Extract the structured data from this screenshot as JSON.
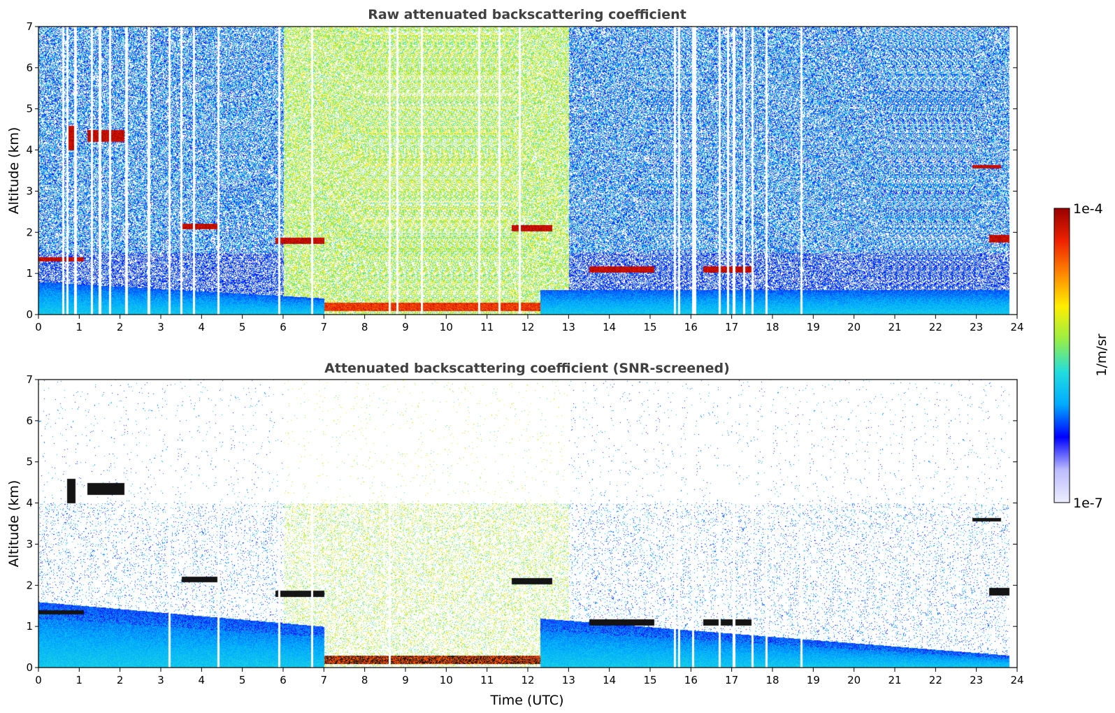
{
  "chart_data": [
    {
      "type": "heatmap",
      "title": "Raw attenuated backscattering coefficient",
      "xlabel": "",
      "ylabel": "Altitude (km)",
      "xlim": [
        0,
        24
      ],
      "ylim": [
        0,
        7
      ],
      "x_ticks": [
        "0",
        "1",
        "2",
        "3",
        "4",
        "5",
        "6",
        "7",
        "8",
        "9",
        "10",
        "11",
        "12",
        "13",
        "14",
        "15",
        "16",
        "17",
        "18",
        "19",
        "20",
        "21",
        "22",
        "23",
        "24"
      ],
      "y_ticks": [
        "0",
        "1",
        "2",
        "3",
        "4",
        "5",
        "6",
        "7"
      ],
      "data_end_time": 23.8,
      "noise_top": 7,
      "missing_profiles": [
        0.6,
        0.7,
        0.9,
        1.3,
        1.5,
        1.75,
        2.15,
        2.7,
        3.2,
        3.5,
        3.8,
        4.4,
        5.9,
        6.7,
        8.6,
        8.8,
        9.4,
        10.8,
        11.3,
        11.8,
        15.6,
        15.7,
        16.05,
        16.1,
        16.7,
        16.9,
        17.05,
        17.3,
        17.5,
        17.85,
        18.7
      ],
      "features": [
        {
          "kind": "boundary-layer",
          "t_start": 0,
          "t_end": 7,
          "top_km_start": 0.8,
          "top_km_end": 0.4
        },
        {
          "kind": "aerosol-layer",
          "t_start": 7,
          "t_end": 12.3,
          "base_km": 0.1,
          "top_km": 0.3
        },
        {
          "kind": "boundary-layer",
          "t_start": 12.3,
          "t_end": 23.8,
          "top_km_start": 0.6,
          "top_km_end": 0.6
        },
        {
          "kind": "cloud",
          "t_start": 0,
          "t_end": 1.1,
          "alt_km": 1.35,
          "thickness_km": 0.1
        },
        {
          "kind": "cloud",
          "t_start": 0.7,
          "t_end": 0.9,
          "alt_km": 4.3,
          "thickness_km": 0.6
        },
        {
          "kind": "cloud",
          "t_start": 1.2,
          "t_end": 2.1,
          "alt_km": 4.35,
          "thickness_km": 0.3
        },
        {
          "kind": "cloud",
          "t_start": 3.5,
          "t_end": 4.4,
          "alt_km": 2.15,
          "thickness_km": 0.15
        },
        {
          "kind": "cloud",
          "t_start": 5.8,
          "t_end": 7.0,
          "alt_km": 1.8,
          "thickness_km": 0.15
        },
        {
          "kind": "cloud",
          "t_start": 11.6,
          "t_end": 12.6,
          "alt_km": 2.1,
          "thickness_km": 0.15
        },
        {
          "kind": "cloud",
          "t_start": 13.5,
          "t_end": 15.1,
          "alt_km": 1.1,
          "thickness_km": 0.15
        },
        {
          "kind": "cloud",
          "t_start": 16.3,
          "t_end": 17.5,
          "alt_km": 1.1,
          "thickness_km": 0.15
        },
        {
          "kind": "cloud",
          "t_start": 22.9,
          "t_end": 23.6,
          "alt_km": 3.6,
          "thickness_km": 0.08
        },
        {
          "kind": "cloud",
          "t_start": 23.3,
          "t_end": 23.8,
          "alt_km": 1.85,
          "thickness_km": 0.2
        }
      ]
    },
    {
      "type": "heatmap",
      "title": "Attenuated backscattering coefficient (SNR-screened)",
      "xlabel": "Time (UTC)",
      "ylabel": "Altitude (km)",
      "xlim": [
        0,
        24
      ],
      "ylim": [
        0,
        7
      ],
      "x_ticks": [
        "0",
        "1",
        "2",
        "3",
        "4",
        "5",
        "6",
        "7",
        "8",
        "9",
        "10",
        "11",
        "12",
        "13",
        "14",
        "15",
        "16",
        "17",
        "18",
        "19",
        "20",
        "21",
        "22",
        "23",
        "24"
      ],
      "y_ticks": [
        "0",
        "1",
        "2",
        "3",
        "4",
        "5",
        "6",
        "7"
      ],
      "data_end_time": 23.8,
      "noise_top": 4,
      "missing_profiles": [
        3.2,
        4.4,
        5.9,
        6.7,
        8.6,
        15.6,
        15.7,
        16.05,
        16.7,
        17.05,
        17.5,
        17.85,
        18.7
      ],
      "features": [
        {
          "kind": "boundary-layer",
          "t_start": 0,
          "t_end": 7,
          "top_km_start": 1.6,
          "top_km_end": 1.0
        },
        {
          "kind": "aerosol-layer",
          "t_start": 7,
          "t_end": 12.3,
          "base_km": 0.1,
          "top_km": 0.3
        },
        {
          "kind": "boundary-layer",
          "t_start": 12.3,
          "t_end": 23.8,
          "top_km_start": 1.2,
          "top_km_end": 0.3
        },
        {
          "kind": "cloud",
          "t_start": 0,
          "t_end": 1.1,
          "alt_km": 1.35,
          "thickness_km": 0.1
        },
        {
          "kind": "cloud",
          "t_start": 0.7,
          "t_end": 0.9,
          "alt_km": 4.3,
          "thickness_km": 0.6
        },
        {
          "kind": "cloud",
          "t_start": 1.2,
          "t_end": 2.1,
          "alt_km": 4.35,
          "thickness_km": 0.3
        },
        {
          "kind": "cloud",
          "t_start": 3.5,
          "t_end": 4.4,
          "alt_km": 2.15,
          "thickness_km": 0.15
        },
        {
          "kind": "cloud",
          "t_start": 5.8,
          "t_end": 7.0,
          "alt_km": 1.8,
          "thickness_km": 0.15
        },
        {
          "kind": "cloud",
          "t_start": 11.6,
          "t_end": 12.6,
          "alt_km": 2.1,
          "thickness_km": 0.15
        },
        {
          "kind": "cloud",
          "t_start": 13.5,
          "t_end": 15.1,
          "alt_km": 1.1,
          "thickness_km": 0.15
        },
        {
          "kind": "cloud",
          "t_start": 16.3,
          "t_end": 17.5,
          "alt_km": 1.1,
          "thickness_km": 0.15
        },
        {
          "kind": "cloud",
          "t_start": 22.9,
          "t_end": 23.6,
          "alt_km": 3.6,
          "thickness_km": 0.08
        },
        {
          "kind": "cloud",
          "t_start": 23.3,
          "t_end": 23.8,
          "alt_km": 1.85,
          "thickness_km": 0.2
        }
      ]
    }
  ],
  "colorbar": {
    "label": "1/m/sr",
    "min_label": "1e-7",
    "max_label": "1e-4",
    "colormap": "jet",
    "colors": [
      "#eeeeff",
      "#bbbbff",
      "#0000ff",
      "#00aaff",
      "#22dddd",
      "#99ee44",
      "#ffee00",
      "#ff8800",
      "#ee2200",
      "#990000"
    ]
  }
}
